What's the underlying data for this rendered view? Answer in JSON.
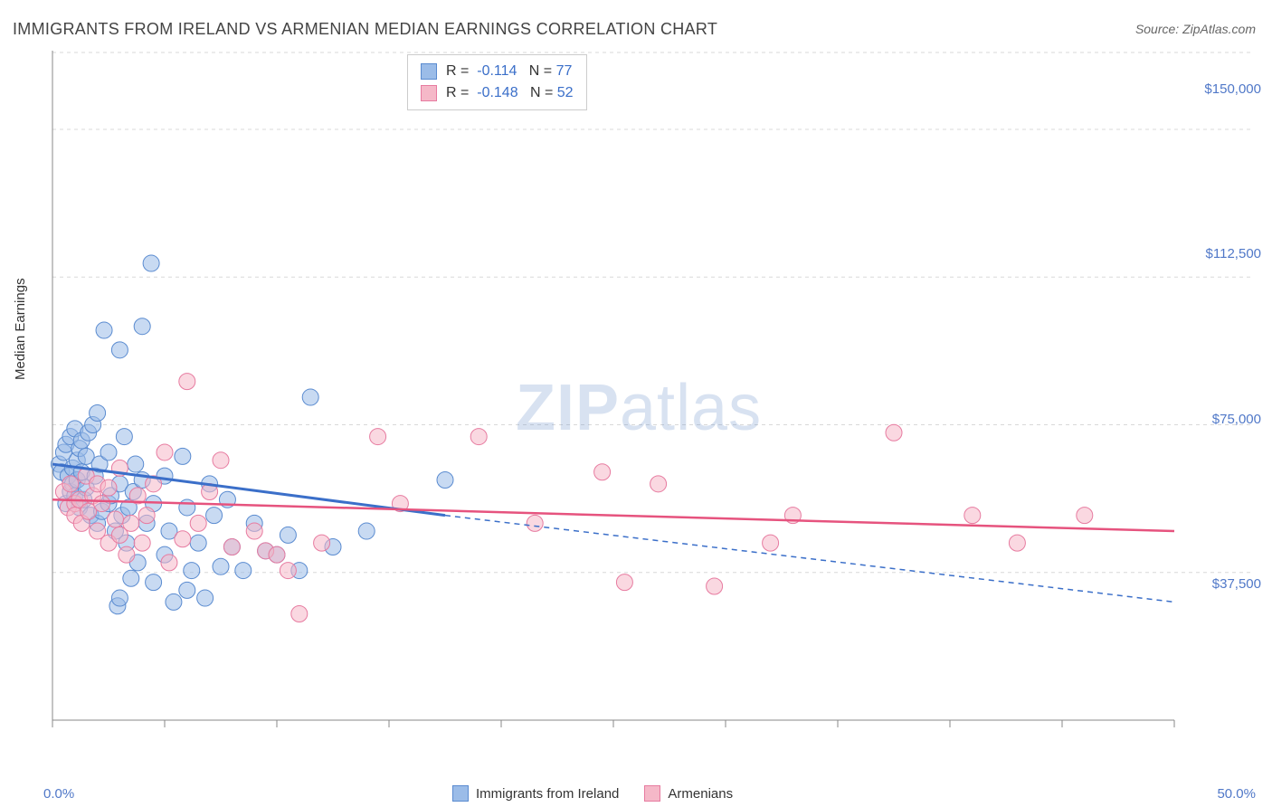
{
  "title": "IMMIGRANTS FROM IRELAND VS ARMENIAN MEDIAN EARNINGS CORRELATION CHART",
  "source": "Source: ZipAtlas.com",
  "ylabel": "Median Earnings",
  "watermark_bold": "ZIP",
  "watermark_rest": "atlas",
  "chart": {
    "type": "scatter",
    "background_color": "#ffffff",
    "grid_color": "#d8d8d8",
    "grid_dash": "4,4",
    "axis_color": "#888888",
    "xlim": [
      0,
      50
    ],
    "ylim": [
      0,
      170000
    ],
    "x_tick_positions": [
      0,
      5,
      10,
      15,
      20,
      25,
      30,
      35,
      40,
      45,
      50
    ],
    "x_tick_labels_visible": {
      "0": "0.0%",
      "50": "50.0%"
    },
    "y_gridlines": [
      37500,
      75000,
      112500,
      150000
    ],
    "y_tick_labels": [
      "$37,500",
      "$75,000",
      "$112,500",
      "$150,000"
    ],
    "label_color": "#5078c8",
    "label_fontsize": 15,
    "marker_radius": 9,
    "marker_opacity": 0.55,
    "series": [
      {
        "name": "Immigrants from Ireland",
        "color_fill": "#9bbce8",
        "color_stroke": "#5a8bd0",
        "R": "-0.114",
        "N": "77",
        "trend": {
          "x1": 0,
          "y1": 65000,
          "x2": 17.5,
          "y2": 52000,
          "x2_dash": 50,
          "y2_dash": 30000,
          "color": "#3b6fc9",
          "width": 3
        },
        "points": [
          [
            0.3,
            65000
          ],
          [
            0.4,
            63000
          ],
          [
            0.5,
            68000
          ],
          [
            0.6,
            55000
          ],
          [
            0.6,
            70000
          ],
          [
            0.7,
            62000
          ],
          [
            0.8,
            72000
          ],
          [
            0.8,
            58000
          ],
          [
            0.9,
            64000
          ],
          [
            0.9,
            60000
          ],
          [
            1.0,
            74000
          ],
          [
            1.0,
            57000
          ],
          [
            1.1,
            66000
          ],
          [
            1.1,
            61000
          ],
          [
            1.2,
            69000
          ],
          [
            1.2,
            54000
          ],
          [
            1.3,
            71000
          ],
          [
            1.3,
            63000
          ],
          [
            1.4,
            56000
          ],
          [
            1.5,
            67000
          ],
          [
            1.5,
            59000
          ],
          [
            1.6,
            73000
          ],
          [
            1.7,
            52000
          ],
          [
            1.8,
            75000
          ],
          [
            1.9,
            62000
          ],
          [
            2.0,
            78000
          ],
          [
            2.0,
            50000
          ],
          [
            2.1,
            65000
          ],
          [
            2.2,
            53000
          ],
          [
            2.3,
            99000
          ],
          [
            2.5,
            68000
          ],
          [
            2.5,
            55000
          ],
          [
            2.6,
            57000
          ],
          [
            2.8,
            48000
          ],
          [
            2.9,
            29000
          ],
          [
            3.0,
            94000
          ],
          [
            3.0,
            60000
          ],
          [
            3.0,
            31000
          ],
          [
            3.1,
            52000
          ],
          [
            3.2,
            72000
          ],
          [
            3.3,
            45000
          ],
          [
            3.4,
            54000
          ],
          [
            3.5,
            36000
          ],
          [
            3.6,
            58000
          ],
          [
            3.7,
            65000
          ],
          [
            3.8,
            40000
          ],
          [
            4.0,
            61000
          ],
          [
            4.0,
            100000
          ],
          [
            4.2,
            50000
          ],
          [
            4.4,
            116000
          ],
          [
            4.5,
            55000
          ],
          [
            4.5,
            35000
          ],
          [
            5.0,
            62000
          ],
          [
            5.0,
            42000
          ],
          [
            5.2,
            48000
          ],
          [
            5.4,
            30000
          ],
          [
            5.8,
            67000
          ],
          [
            6.0,
            33000
          ],
          [
            6.0,
            54000
          ],
          [
            6.2,
            38000
          ],
          [
            6.5,
            45000
          ],
          [
            6.8,
            31000
          ],
          [
            7.0,
            60000
          ],
          [
            7.2,
            52000
          ],
          [
            7.5,
            39000
          ],
          [
            7.8,
            56000
          ],
          [
            8.0,
            44000
          ],
          [
            8.5,
            38000
          ],
          [
            9.0,
            50000
          ],
          [
            9.5,
            43000
          ],
          [
            10.0,
            42000
          ],
          [
            10.5,
            47000
          ],
          [
            11.0,
            38000
          ],
          [
            11.5,
            82000
          ],
          [
            12.5,
            44000
          ],
          [
            14.0,
            48000
          ],
          [
            17.5,
            61000
          ]
        ]
      },
      {
        "name": "Armenians",
        "color_fill": "#f5b8c8",
        "color_stroke": "#e77ba0",
        "R": "-0.148",
        "N": "52",
        "trend": {
          "x1": 0,
          "y1": 56000,
          "x2": 50,
          "y2": 48000,
          "color": "#e6537e",
          "width": 2.5
        },
        "points": [
          [
            0.5,
            58000
          ],
          [
            0.7,
            54000
          ],
          [
            0.8,
            60000
          ],
          [
            1.0,
            55000
          ],
          [
            1.0,
            52000
          ],
          [
            1.2,
            56000
          ],
          [
            1.3,
            50000
          ],
          [
            1.5,
            62000
          ],
          [
            1.6,
            53000
          ],
          [
            1.8,
            57000
          ],
          [
            2.0,
            60000
          ],
          [
            2.0,
            48000
          ],
          [
            2.2,
            55000
          ],
          [
            2.5,
            45000
          ],
          [
            2.5,
            59000
          ],
          [
            2.8,
            51000
          ],
          [
            3.0,
            64000
          ],
          [
            3.0,
            47000
          ],
          [
            3.3,
            42000
          ],
          [
            3.5,
            50000
          ],
          [
            3.8,
            57000
          ],
          [
            4.0,
            45000
          ],
          [
            4.2,
            52000
          ],
          [
            4.5,
            60000
          ],
          [
            5.0,
            68000
          ],
          [
            5.2,
            40000
          ],
          [
            5.8,
            46000
          ],
          [
            6.0,
            86000
          ],
          [
            6.5,
            50000
          ],
          [
            7.0,
            58000
          ],
          [
            7.5,
            66000
          ],
          [
            8.0,
            44000
          ],
          [
            9.0,
            48000
          ],
          [
            9.5,
            43000
          ],
          [
            10.0,
            42000
          ],
          [
            10.5,
            38000
          ],
          [
            11.0,
            27000
          ],
          [
            12.0,
            45000
          ],
          [
            14.5,
            72000
          ],
          [
            15.5,
            55000
          ],
          [
            19.0,
            72000
          ],
          [
            21.5,
            50000
          ],
          [
            24.5,
            63000
          ],
          [
            25.5,
            35000
          ],
          [
            27.0,
            60000
          ],
          [
            29.5,
            34000
          ],
          [
            32.0,
            45000
          ],
          [
            33.0,
            52000
          ],
          [
            37.5,
            73000
          ],
          [
            41.0,
            52000
          ],
          [
            43.0,
            45000
          ],
          [
            46.0,
            52000
          ]
        ]
      }
    ]
  },
  "legend_top": {
    "r_label": "R  =",
    "n_label": "N  =",
    "text_color": "#333",
    "value_color": "#3b6fc9"
  },
  "legend_bottom": [
    {
      "label": "Immigrants from Ireland",
      "fill": "#9bbce8",
      "stroke": "#5a8bd0"
    },
    {
      "label": "Armenians",
      "fill": "#f5b8c8",
      "stroke": "#e77ba0"
    }
  ]
}
